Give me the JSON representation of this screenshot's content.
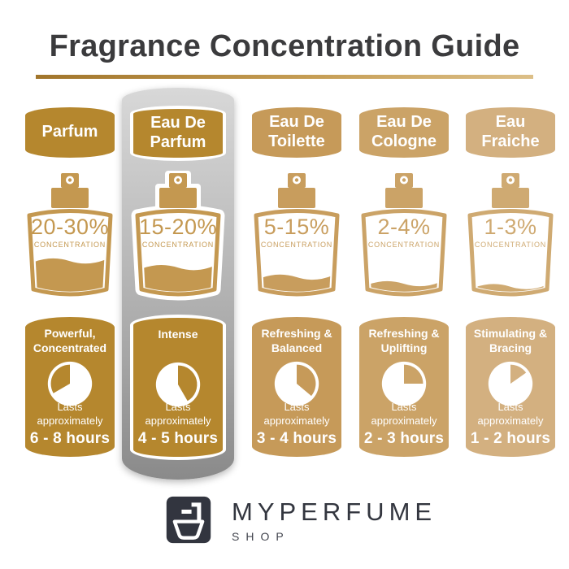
{
  "page": {
    "title": "Fragrance Concentration Guide"
  },
  "columns": [
    {
      "name": "Parfum",
      "concentration": "20-30%",
      "concentration_label": "CONCENTRATION",
      "fill_percent": 42,
      "character": "Powerful,\nConcentrated",
      "lasts": "Lasts\napproximately",
      "duration": "6 - 8 hours",
      "pie_start_deg": 240,
      "pie_end_deg": 360,
      "accent": "#b5872e",
      "bottle_color": "#c49850",
      "highlighted": false
    },
    {
      "name": "Eau De\nParfum",
      "concentration": "15-20%",
      "concentration_label": "CONCENTRATION",
      "fill_percent": 33,
      "character": "Intense",
      "lasts": "Lasts\napproximately",
      "duration": "4 - 5 hours",
      "pie_start_deg": 0,
      "pie_end_deg": 150,
      "accent": "#b5872e",
      "bottle_color": "#c49850",
      "highlighted": true
    },
    {
      "name": "Eau De\nToilette",
      "concentration": "5-15%",
      "concentration_label": "CONCENTRATION",
      "fill_percent": 20,
      "character": "Refreshing &\nBalanced",
      "lasts": "Lasts\napproximately",
      "duration": "3 - 4 hours",
      "pie_start_deg": 0,
      "pie_end_deg": 130,
      "accent": "#c69a59",
      "bottle_color": "#c89d5d",
      "highlighted": false
    },
    {
      "name": "Eau De\nCologne",
      "concentration": "2-4%",
      "concentration_label": "CONCENTRATION",
      "fill_percent": 11,
      "character": "Refreshing &\nUplifting",
      "lasts": "Lasts\napproximately",
      "duration": "2 - 3 hours",
      "pie_start_deg": 0,
      "pie_end_deg": 90,
      "accent": "#cba367",
      "bottle_color": "#cba367",
      "highlighted": false
    },
    {
      "name": "Eau\nFraiche",
      "concentration": "1-3%",
      "concentration_label": "CONCENTRATION",
      "fill_percent": 7,
      "character": "Stimulating &\nBracing",
      "lasts": "Lasts\napproximately",
      "duration": "1 - 2 hours",
      "pie_start_deg": 0,
      "pie_end_deg": 55,
      "accent": "#d3b080",
      "bottle_color": "#cfaa72",
      "highlighted": false
    }
  ],
  "logo": {
    "brand": "MYPERFUME",
    "sub": "SHOP"
  }
}
